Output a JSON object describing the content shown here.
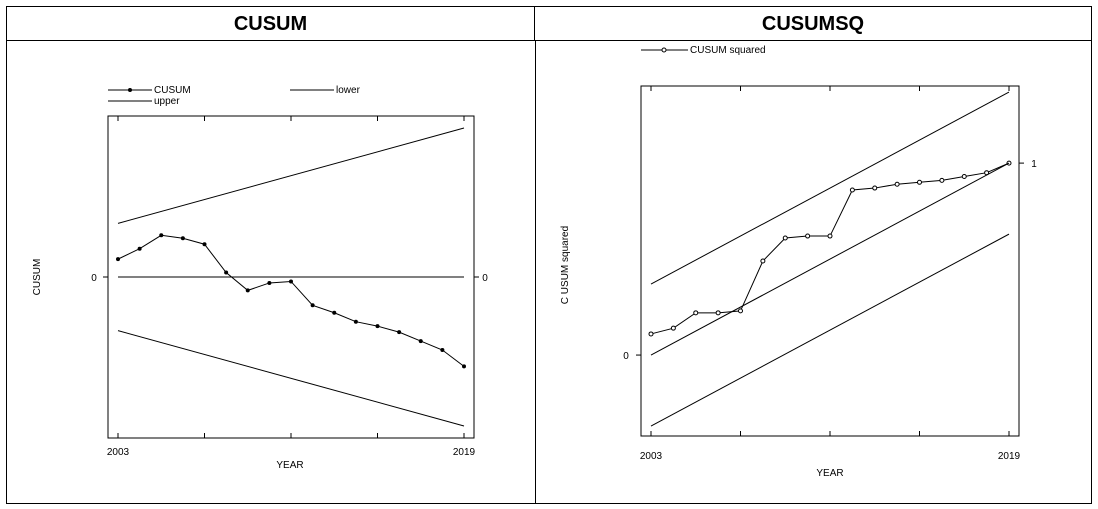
{
  "chart_data": [
    {
      "panel_title": "CUSUM",
      "type": "line",
      "xlabel": "YEAR",
      "ylabel": "CUSUM",
      "x_tick_labels": [
        "2003",
        "2019"
      ],
      "y_tick_label_left": "0",
      "y_tick_label_right": "0",
      "xlim": [
        2003,
        2019
      ],
      "ylim": [
        -1,
        1
      ],
      "legend": [
        "CUSUM",
        "lower",
        "upper"
      ],
      "legend_placement": "top",
      "grid": false,
      "series": [
        {
          "name": "CUSUM",
          "x": [
            2003,
            2004,
            2005,
            2006,
            2007,
            2008,
            2009,
            2010,
            2011,
            2012,
            2013,
            2014,
            2015,
            2016,
            2017,
            2018,
            2019
          ],
          "y": [
            0.12,
            0.19,
            0.28,
            0.26,
            0.22,
            0.03,
            -0.09,
            -0.04,
            -0.03,
            -0.19,
            -0.24,
            -0.3,
            -0.33,
            -0.37,
            -0.43,
            -0.49,
            -0.6
          ]
        },
        {
          "name": "upper",
          "x": [
            2003,
            2019
          ],
          "y": [
            0.36,
            1.0
          ]
        },
        {
          "name": "lower",
          "x": [
            2003,
            2019
          ],
          "y": [
            -0.36,
            -1.0
          ]
        },
        {
          "name": "zero",
          "x": [
            2003,
            2019
          ],
          "y": [
            0,
            0
          ]
        }
      ]
    },
    {
      "panel_title": "CUSUMSQ",
      "type": "line",
      "xlabel": "YEAR",
      "ylabel": "C USUM squared",
      "x_tick_labels": [
        "2003",
        "2019"
      ],
      "y_tick_label_left": "0",
      "y_tick_label_right": "1",
      "xlim": [
        2003,
        2019
      ],
      "ylim": [
        -0.38,
        1.36
      ],
      "legend": [
        "CUSUM squared"
      ],
      "legend_placement": "top-left",
      "grid": false,
      "series": [
        {
          "name": "CUSUM squared",
          "x": [
            2003,
            2004,
            2005,
            2006,
            2007,
            2008,
            2009,
            2010,
            2011,
            2012,
            2013,
            2014,
            2015,
            2016,
            2017,
            2018,
            2019
          ],
          "y": [
            0.11,
            0.14,
            0.22,
            0.22,
            0.23,
            0.49,
            0.61,
            0.62,
            0.62,
            0.86,
            0.87,
            0.89,
            0.9,
            0.91,
            0.93,
            0.95,
            1.0
          ]
        },
        {
          "name": "upper",
          "x": [
            2003,
            2019
          ],
          "y": [
            0.37,
            1.37
          ]
        },
        {
          "name": "mid",
          "x": [
            2003,
            2019
          ],
          "y": [
            0.0,
            1.0
          ]
        },
        {
          "name": "lower",
          "x": [
            2003,
            2019
          ],
          "y": [
            -0.37,
            0.63
          ]
        }
      ]
    }
  ]
}
